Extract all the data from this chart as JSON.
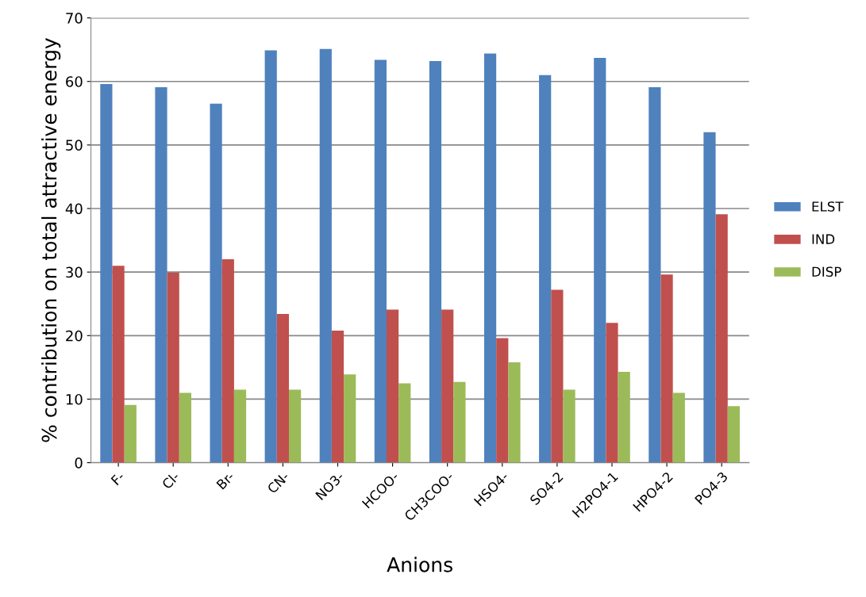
{
  "chart_data": {
    "type": "bar",
    "xlabel": "Anions",
    "ylabel": "% contribution on total attractive energy",
    "categories": [
      "F-",
      "Cl-",
      "Br-",
      "CN-",
      "NO3-",
      "HCOO-",
      "CH3COO-",
      "HSO4-",
      "SO4-2",
      "H2PO4-1",
      "HPO4-2",
      "PO4-3"
    ],
    "series": [
      {
        "name": "ELST",
        "color": "#4f81bd",
        "values": [
          59.6,
          59.1,
          56.5,
          64.9,
          65.1,
          63.4,
          63.2,
          64.4,
          61.0,
          63.7,
          59.1,
          52.0
        ]
      },
      {
        "name": "IND",
        "color": "#c0504d",
        "values": [
          31.0,
          29.9,
          32.0,
          23.4,
          20.8,
          24.1,
          24.1,
          19.6,
          27.2,
          22.0,
          29.6,
          39.1
        ]
      },
      {
        "name": "DISP",
        "color": "#9bbb59",
        "values": [
          9.1,
          11.0,
          11.5,
          11.5,
          13.9,
          12.5,
          12.7,
          15.8,
          11.5,
          14.3,
          11.0,
          8.9
        ]
      }
    ],
    "ylim": [
      0,
      70
    ],
    "yticks": [
      0,
      10,
      20,
      30,
      40,
      50,
      60,
      70
    ],
    "grid": "y",
    "legend": "right"
  }
}
